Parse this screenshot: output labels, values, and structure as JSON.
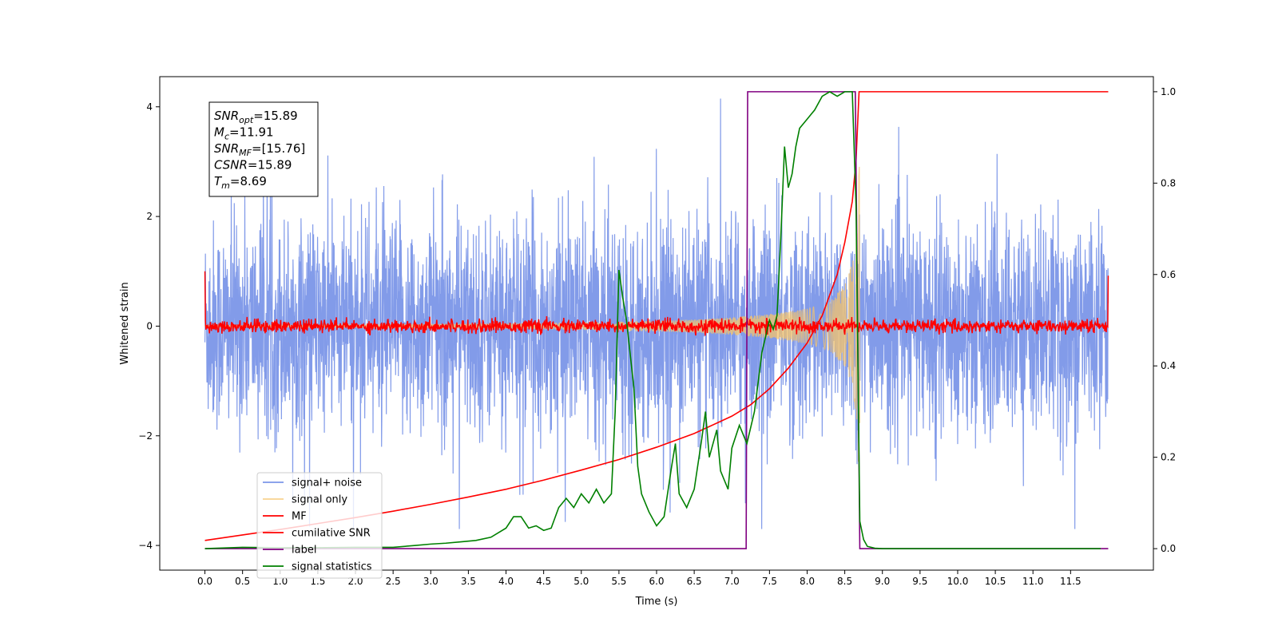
{
  "chart_data": {
    "type": "line",
    "title": "",
    "xlabel": "Time (s)",
    "ylabel": "Whitened strain",
    "y2label": "",
    "xlim": [
      -0.6,
      12.6
    ],
    "ylim": [
      -4.45,
      4.55
    ],
    "y2lim": [
      -0.047,
      1.033
    ],
    "x_ticks": [
      0.0,
      0.5,
      1.0,
      1.5,
      2.0,
      2.5,
      3.0,
      3.5,
      4.0,
      4.5,
      5.0,
      5.5,
      6.0,
      6.5,
      7.0,
      7.5,
      8.0,
      8.5,
      9.0,
      9.5,
      10.0,
      10.5,
      11.0,
      11.5
    ],
    "x_tick_labels": [
      "0.0",
      "0.5",
      "1.0",
      "1.5",
      "2.0",
      "2.5",
      "3.0",
      "3.5",
      "4.0",
      "4.5",
      "5.0",
      "5.5",
      "6.0",
      "6.5",
      "7.0",
      "7.5",
      "8.0",
      "8.5",
      "9.0",
      "9.5",
      "10.0",
      "10.5",
      "11.0",
      "11.5"
    ],
    "y_ticks": [
      4,
      2,
      0,
      -2,
      -4
    ],
    "y_tick_labels": [
      "4",
      "2",
      "0",
      "−2",
      "−4"
    ],
    "y2_ticks": [
      1.0,
      0.8,
      0.6,
      0.4,
      0.2,
      0.0
    ],
    "y2_tick_labels": [
      "1.0",
      "0.8",
      "0.6",
      "0.4",
      "0.2",
      "0.0"
    ],
    "grid": false,
    "legend_position": "lower-left",
    "annotation": {
      "lines": [
        {
          "sym": "SNR",
          "sub": "opt",
          "value": "=15.89"
        },
        {
          "sym": "M",
          "sub": "c",
          "value": "=11.91"
        },
        {
          "sym": "SNR",
          "sub": "MF",
          "value": "=[15.76]"
        },
        {
          "sym": "CSNR",
          "sub": "",
          "value": "=15.89"
        },
        {
          "sym": "T",
          "sub": "m",
          "value": "=8.69"
        }
      ]
    },
    "series": [
      {
        "name": "signal+ noise",
        "color": "#7b96e8",
        "axis": "left",
        "kind": "noise_band",
        "amplitude_typical": 1.5,
        "amplitude_peak": 4.15,
        "x_range": [
          0.0,
          12.0
        ]
      },
      {
        "name": "signal only",
        "color": "#f5c46a",
        "axis": "left",
        "kind": "chirp",
        "x_range": [
          0.0,
          8.7
        ],
        "envelope": {
          "x": [
            0.0,
            2.0,
            4.0,
            5.5,
            6.5,
            7.0,
            7.5,
            8.0,
            8.3,
            8.5,
            8.6,
            8.65,
            8.7
          ],
          "amp": [
            0.02,
            0.03,
            0.05,
            0.08,
            0.12,
            0.16,
            0.22,
            0.32,
            0.45,
            0.75,
            1.15,
            1.6,
            3.2
          ]
        }
      },
      {
        "name": "MF",
        "color": "#ff0000",
        "axis": "left",
        "kind": "noise_band",
        "amplitude_typical": 0.06,
        "x_range": [
          0.0,
          12.0
        ],
        "edges": {
          "start": 1.0,
          "end": 0.92
        }
      },
      {
        "name": "cumilative SNR",
        "color": "#ff0000",
        "axis": "right",
        "x": [
          0.0,
          0.5,
          1.0,
          1.5,
          2.0,
          2.5,
          3.0,
          3.5,
          4.0,
          4.5,
          5.0,
          5.5,
          6.0,
          6.5,
          7.0,
          7.25,
          7.5,
          7.75,
          8.0,
          8.2,
          8.4,
          8.5,
          8.6,
          8.65,
          8.69,
          9.0,
          10.0,
          11.0,
          12.0
        ],
        "y": [
          0.018,
          0.03,
          0.042,
          0.055,
          0.068,
          0.082,
          0.097,
          0.113,
          0.13,
          0.15,
          0.172,
          0.195,
          0.222,
          0.252,
          0.29,
          0.315,
          0.35,
          0.395,
          0.45,
          0.51,
          0.6,
          0.67,
          0.76,
          0.85,
          1.0,
          1.0,
          1.0,
          1.0,
          1.0
        ]
      },
      {
        "name": "label",
        "color": "#800080",
        "axis": "right",
        "x": [
          0.0,
          7.19,
          7.21,
          8.64,
          8.66,
          8.7,
          12.0
        ],
        "y": [
          0.0,
          0.0,
          1.0,
          1.0,
          0.68,
          0.0,
          0.0
        ]
      },
      {
        "name": "signal statistics",
        "color": "#008000",
        "axis": "right",
        "x": [
          0.0,
          0.5,
          1.0,
          1.5,
          2.0,
          2.5,
          2.8,
          3.0,
          3.2,
          3.4,
          3.6,
          3.8,
          3.9,
          4.0,
          4.1,
          4.2,
          4.3,
          4.4,
          4.5,
          4.6,
          4.7,
          4.8,
          4.9,
          5.0,
          5.1,
          5.2,
          5.3,
          5.4,
          5.45,
          5.5,
          5.55,
          5.6,
          5.7,
          5.75,
          5.8,
          5.9,
          6.0,
          6.1,
          6.2,
          6.25,
          6.3,
          6.4,
          6.5,
          6.6,
          6.65,
          6.7,
          6.8,
          6.85,
          6.9,
          6.95,
          7.0,
          7.1,
          7.2,
          7.3,
          7.4,
          7.5,
          7.55,
          7.6,
          7.65,
          7.7,
          7.75,
          7.8,
          7.85,
          7.9,
          8.0,
          8.1,
          8.2,
          8.3,
          8.4,
          8.5,
          8.6,
          8.65,
          8.7,
          8.75,
          8.8,
          8.9,
          9.0,
          10.0,
          11.0,
          11.9
        ],
        "y": [
          0.0,
          0.003,
          0.002,
          0.002,
          0.003,
          0.003,
          0.007,
          0.01,
          0.012,
          0.015,
          0.018,
          0.025,
          0.035,
          0.045,
          0.07,
          0.07,
          0.045,
          0.05,
          0.04,
          0.045,
          0.09,
          0.11,
          0.09,
          0.12,
          0.1,
          0.13,
          0.1,
          0.12,
          0.3,
          0.61,
          0.55,
          0.5,
          0.35,
          0.18,
          0.12,
          0.08,
          0.05,
          0.07,
          0.18,
          0.23,
          0.12,
          0.09,
          0.13,
          0.24,
          0.3,
          0.2,
          0.26,
          0.17,
          0.15,
          0.13,
          0.22,
          0.27,
          0.23,
          0.3,
          0.43,
          0.5,
          0.48,
          0.51,
          0.68,
          0.88,
          0.79,
          0.82,
          0.88,
          0.92,
          0.94,
          0.96,
          0.99,
          1.0,
          0.99,
          1.0,
          1.0,
          0.75,
          0.06,
          0.02,
          0.005,
          0.001,
          0.0,
          0.0,
          0.0,
          0.0
        ]
      }
    ]
  }
}
